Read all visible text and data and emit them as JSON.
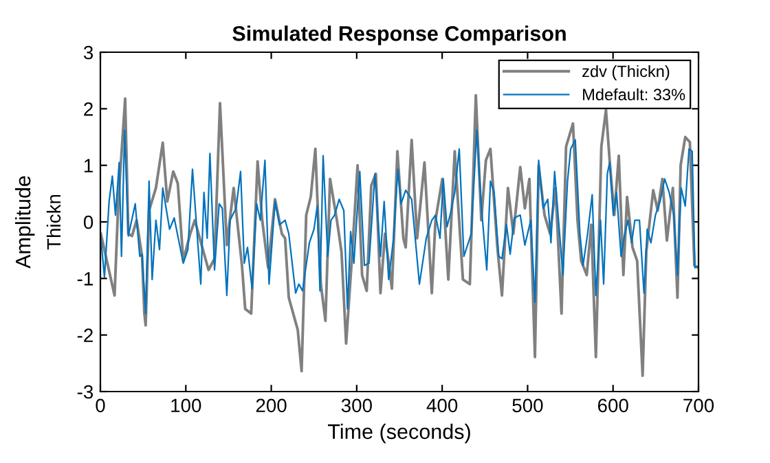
{
  "chart_data": {
    "type": "line",
    "title": "Simulated Response Comparison",
    "xlabel": "Time (seconds)",
    "ylabel": "Amplitude",
    "annotations": [
      "Thickn"
    ],
    "xlim": [
      0,
      700
    ],
    "ylim": [
      -3,
      3
    ],
    "xticks": [
      0,
      100,
      200,
      300,
      400,
      500,
      600,
      700
    ],
    "yticks": [
      -3,
      -2,
      -1,
      0,
      1,
      2,
      3
    ],
    "grid": false,
    "legend": "top right",
    "marker": "none",
    "line_style": "solid",
    "series": [
      {
        "name": "zdv (Thickn)",
        "color": "#808080",
        "x": [
          0.5,
          16.6,
          21,
          29,
          32.7,
          37,
          42.4,
          48.8,
          51.5,
          53,
          57,
          65,
          73,
          78.3,
          85.3,
          90.6,
          97,
          105.1,
          110.5,
          118.5,
          126.6,
          133.6,
          140,
          148,
          156,
          165.7,
          169.5,
          176.5,
          184,
          189.4,
          196.3,
          204.4,
          212.4,
          216.2,
          220.5,
          231,
          235.5,
          240.9,
          246.2,
          251.6,
          258,
          263.4,
          268.8,
          276.8,
          282.2,
          287.6,
          294.5,
          301,
          306.3,
          311.7,
          317,
          322.4,
          327.8,
          333.1,
          341.2,
          347.6,
          354.6,
          357.3,
          364.3,
          370.7,
          379.3,
          387.9,
          392.2,
          400.2,
          407.2,
          414.7,
          424.3,
          432.4,
          439.4,
          445.8,
          451.2,
          456.5,
          464.6,
          470,
          477,
          483.3,
          491.4,
          496.8,
          502.1,
          508.6,
          512.9,
          519.8,
          526.3,
          532.7,
          539.7,
          545,
          553.1,
          558.4,
          562.7,
          569.2,
          574.5,
          579.9,
          586.3,
          591.7,
          596,
          601.4,
          606.7,
          612.1,
          616.4,
          622.8,
          628.2,
          634.6,
          638.9,
          647,
          652.3,
          657.7,
          663,
          670,
          675.4,
          679.1,
          684.5,
          689.9,
          695.2,
          699
        ],
        "values": [
          -0.21,
          -1.3,
          0.36,
          2.18,
          -0.21,
          -0.25,
          0.03,
          -0.61,
          -1.62,
          -1.83,
          0.2,
          0.6,
          1.4,
          0.36,
          0.89,
          0.68,
          -0.69,
          -0.21,
          0.03,
          -0.41,
          -0.85,
          -0.65,
          2.1,
          -0.41,
          0.6,
          -0.77,
          -1.54,
          -1.62,
          1.07,
          0.03,
          -0.81,
          0.4,
          -0.21,
          -0.29,
          -1.34,
          -1.91,
          -2.64,
          0.12,
          0.44,
          1.29,
          -1.1,
          -1.75,
          0.76,
          0.03,
          -0.53,
          -2.15,
          -0.61,
          1.0,
          -0.94,
          -1.22,
          0.64,
          0.85,
          -1.26,
          -0.21,
          -1.18,
          1.25,
          -0.29,
          -0.45,
          1.45,
          -0.29,
          1.05,
          -1.26,
          0.03,
          0.76,
          -1.02,
          1.25,
          -1.02,
          -1.1,
          2.24,
          0.03,
          1.09,
          1.29,
          -0.45,
          -1.3,
          0.6,
          -0.21,
          0.97,
          0.24,
          0.76,
          -2.39,
          1.0,
          0.12,
          -0.21,
          0.6,
          -1.62,
          1.33,
          1.74,
          0.03,
          -0.69,
          -0.94,
          -0.05,
          -2.39,
          1.33,
          1.98,
          1.09,
          0.12,
          1.17,
          -0.94,
          0.44,
          -0.45,
          -0.69,
          -2.72,
          -0.53,
          0.56,
          0.2,
          0.76,
          -0.33,
          0.6,
          -1.34,
          1.0,
          1.5,
          1.41,
          -0.77,
          -0.8
        ]
      },
      {
        "name": "Mdefault: 33%",
        "color": "#0072bd",
        "x": [
          0.5,
          4.8,
          10.2,
          14,
          17.7,
          22,
          24.7,
          28.4,
          32.7,
          40.8,
          46.1,
          48.8,
          53,
          57,
          60.6,
          65,
          69.2,
          73,
          81,
          86.4,
          97,
          102.4,
          107.8,
          117.5,
          121.2,
          125,
          128.2,
          133.6,
          139,
          142.7,
          148,
          151.8,
          158.8,
          164.1,
          168.4,
          172.2,
          177.5,
          182.9,
          187.2,
          192.6,
          197.4,
          204.4,
          209.7,
          216.2,
          220.5,
          228.5,
          232.3,
          236.6,
          244.6,
          250,
          253.8,
          257,
          260.7,
          266.1,
          269.9,
          274.1,
          279.5,
          284.9,
          289.2,
          292.9,
          296.7,
          303.6,
          309,
          314.4,
          321.3,
          327.8,
          332.1,
          337.4,
          342.8,
          348.2,
          351.9,
          357.3,
          364.3,
          373.4,
          381.4,
          387.9,
          392.2,
          397.5,
          401.3,
          405.6,
          409.3,
          414.7,
          420,
          425.4,
          434,
          440.5,
          445.8,
          452.2,
          456.5,
          460.8,
          466.2,
          470,
          475.3,
          479.6,
          484.4,
          491.4,
          496.8,
          503.7,
          508.6,
          512.9,
          518.2,
          523.6,
          527.3,
          531.6,
          537,
          541.3,
          546.7,
          550.4,
          555.8,
          561.2,
          564.9,
          570.2,
          575.6,
          579.9,
          585.3,
          589,
          593.3,
          596,
          600.3,
          604.1,
          609.4,
          613.2,
          617.4,
          621.8,
          625.5,
          630.9,
          636.2,
          640,
          644.3,
          649.6,
          655,
          660.4,
          665.7,
          671.1,
          675.4,
          679.7,
          684.5,
          688.9,
          692.6,
          695.8,
          699
        ],
        "values": [
          -0.29,
          -0.98,
          0.36,
          0.81,
          0.12,
          1.05,
          -0.61,
          1.62,
          -0.25,
          0.32,
          -0.61,
          -0.57,
          -1.62,
          0.72,
          -1.02,
          0.03,
          -0.49,
          0.6,
          -0.13,
          0.07,
          -0.73,
          -0.49,
          0.93,
          -1.1,
          0.52,
          -0.29,
          1.21,
          -0.85,
          0.32,
          0.24,
          -1.3,
          0.03,
          0.24,
          0.89,
          -0.73,
          -0.45,
          -1.18,
          0.32,
          0.03,
          1.09,
          -1.1,
          0.36,
          -0.05,
          0.03,
          -0.21,
          -1.26,
          -1.1,
          -1.22,
          -0.37,
          -0.13,
          0.28,
          -1.22,
          1.17,
          -0.61,
          0.03,
          0.12,
          0.4,
          0.2,
          -1.54,
          -0.17,
          -0.73,
          0.89,
          -0.77,
          -0.73,
          0.85,
          -0.61,
          0.36,
          -1.02,
          -0.33,
          0.93,
          0.32,
          0.56,
          0.4,
          -1.1,
          -0.29,
          0.03,
          0.12,
          -0.29,
          0.76,
          -0.09,
          0.12,
          0.52,
          1.29,
          -0.61,
          -0.21,
          1.62,
          0.28,
          -0.85,
          0.72,
          0.52,
          -0.61,
          -0.65,
          -0.05,
          -0.57,
          0.07,
          0.12,
          -0.41,
          0.03,
          -1.42,
          1.09,
          0.24,
          0.4,
          -0.37,
          0.89,
          -0.13,
          -0.94,
          0.72,
          1.29,
          1.45,
          -0.21,
          -0.77,
          -0.21,
          0.48,
          -1.3,
          0.03,
          -1.1,
          0.85,
          1.05,
          0.12,
          0.52,
          -0.61,
          -0.25,
          0.03,
          -0.37,
          0.03,
          0.03,
          -1.26,
          -0.13,
          -0.37,
          0.12,
          0.36,
          0.76,
          0.52,
          0.12,
          -0.94,
          0.6,
          0.28,
          1.29,
          1.25,
          -0.81,
          -0.8
        ]
      }
    ]
  }
}
